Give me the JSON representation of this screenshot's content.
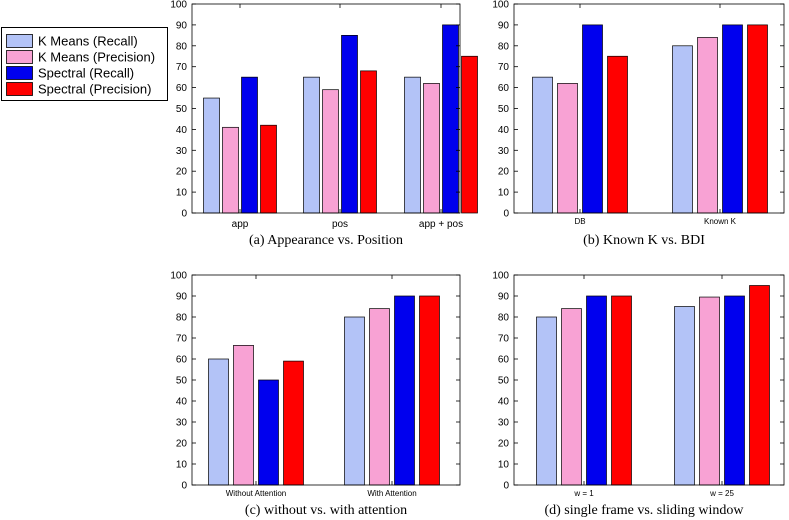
{
  "legend": {
    "entries": [
      {
        "label": "K Means (Recall)",
        "color": "#b3c3f7"
      },
      {
        "label": "K Means (Precision)",
        "color": "#f8a2d4"
      },
      {
        "label": "Spectral (Recall)",
        "color": "#0000ee"
      },
      {
        "label": "Spectral (Precision)",
        "color": "#ff0000"
      }
    ]
  },
  "chart_data": [
    {
      "type": "bar",
      "caption": "(a) Appearance vs. Position",
      "categories": [
        "app",
        "pos",
        "app + pos"
      ],
      "ylim": [
        0,
        100
      ],
      "yticks": [
        0,
        10,
        20,
        30,
        40,
        50,
        60,
        70,
        80,
        90,
        100
      ],
      "series": [
        {
          "name": "K Means (Recall)",
          "values": [
            55,
            65,
            65
          ]
        },
        {
          "name": "K Means (Precision)",
          "values": [
            41,
            59,
            62
          ]
        },
        {
          "name": "Spectral (Recall)",
          "values": [
            65,
            85,
            90
          ]
        },
        {
          "name": "Spectral (Precision)",
          "values": [
            42,
            68,
            75
          ]
        }
      ]
    },
    {
      "type": "bar",
      "caption": "(b) Known K vs. BDI",
      "categories": [
        "DB",
        "Known K"
      ],
      "ylim": [
        0,
        100
      ],
      "yticks": [
        0,
        10,
        20,
        30,
        40,
        50,
        60,
        70,
        80,
        90,
        100
      ],
      "series": [
        {
          "name": "K Means (Recall)",
          "values": [
            65,
            80
          ]
        },
        {
          "name": "K Means (Precision)",
          "values": [
            62,
            84
          ]
        },
        {
          "name": "Spectral (Recall)",
          "values": [
            90,
            90
          ]
        },
        {
          "name": "Spectral (Precision)",
          "values": [
            75,
            90
          ]
        }
      ]
    },
    {
      "type": "bar",
      "caption": "(c) without vs. with attention",
      "categories": [
        "Without Attention",
        "With Attention"
      ],
      "ylim": [
        0,
        100
      ],
      "yticks": [
        0,
        10,
        20,
        30,
        40,
        50,
        60,
        70,
        80,
        90,
        100
      ],
      "series": [
        {
          "name": "K Means (Recall)",
          "values": [
            60,
            80
          ]
        },
        {
          "name": "K Means (Precision)",
          "values": [
            66.5,
            84
          ]
        },
        {
          "name": "Spectral (Recall)",
          "values": [
            50,
            90
          ]
        },
        {
          "name": "Spectral (Precision)",
          "values": [
            59,
            90
          ]
        }
      ]
    },
    {
      "type": "bar",
      "caption": "(d) single frame vs. sliding window",
      "categories": [
        "w = 1",
        "w = 25"
      ],
      "ylim": [
        0,
        100
      ],
      "yticks": [
        0,
        10,
        20,
        30,
        40,
        50,
        60,
        70,
        80,
        90,
        100
      ],
      "series": [
        {
          "name": "K Means (Recall)",
          "values": [
            80,
            85
          ]
        },
        {
          "name": "K Means (Precision)",
          "values": [
            84,
            89.5
          ]
        },
        {
          "name": "Spectral (Recall)",
          "values": [
            90,
            90
          ]
        },
        {
          "name": "Spectral (Precision)",
          "values": [
            90,
            95
          ]
        }
      ]
    }
  ]
}
